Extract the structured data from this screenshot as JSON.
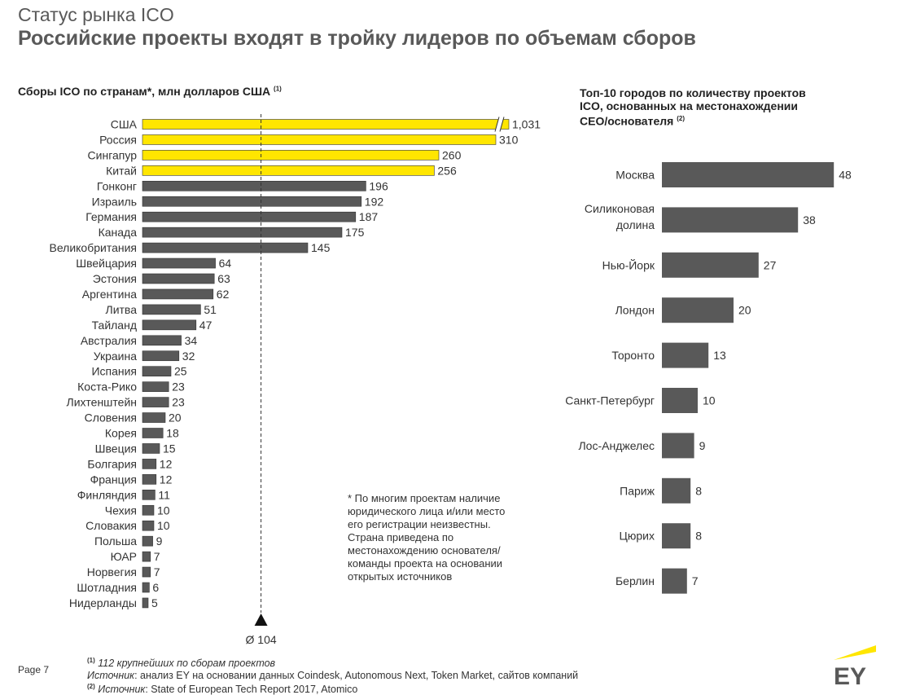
{
  "header": {
    "supertitle": "Статус рынка ICO",
    "title": "Российские проекты входят в тройку лидеров по объемам сборов"
  },
  "left_chart_title": {
    "text": "Сборы ICO по странам*, млн долларов США",
    "sup": "(1)"
  },
  "right_chart_title": {
    "line1": "Топ-10 городов по количеству проектов",
    "line2": "ICO, основанных на местонахождении",
    "line3": "CEO/основателя",
    "sup": "(2)"
  },
  "average_label": "Ø 104",
  "footnote": "* По многим проектам наличие юридического лица и/или место его регистрации неизвестны. Страна приведена по местонахождению основателя/команды проекта на основании открытых источников",
  "footer": {
    "page": "Page 7",
    "source1_sup": "(1)",
    "source1": "112 крупнейших по сборам проектов",
    "source2_label": "Источник",
    "source2": ": анализ EY на основании данных Coindesk, Autonomous Next, Token Market, сайтов компаний",
    "source3_sup": "(2)",
    "source3_label": "Источник",
    "source3": ": State of European Tech Report 2017, Atomico"
  },
  "logo_text": "EY",
  "colors": {
    "highlight": "#ffe600",
    "bar": "#595959",
    "text": "#333333",
    "logo_bar": "#ffe600"
  },
  "chart_data": [
    {
      "type": "bar",
      "orientation": "horizontal",
      "title": "Сборы ICO по странам*, млн долларов США",
      "categories": [
        "США",
        "Россия",
        "Сингапур",
        "Китай",
        "Гонконг",
        "Израиль",
        "Германия",
        "Канада",
        "Великобритания",
        "Швейцария",
        "Эстония",
        "Аргентина",
        "Литва",
        "Тайланд",
        "Австралия",
        "Украина",
        "Испания",
        "Коста-Рико",
        "Лихтенштейн",
        "Словения",
        "Корея",
        "Швеция",
        "Болгария",
        "Франция",
        "Финляндия",
        "Чехия",
        "Словакия",
        "Польша",
        "ЮАР",
        "Норвегия",
        "Шотладния",
        "Нидерланды"
      ],
      "values": [
        1031,
        310,
        260,
        256,
        196,
        192,
        187,
        175,
        145,
        64,
        63,
        62,
        51,
        47,
        34,
        32,
        25,
        23,
        23,
        20,
        18,
        15,
        12,
        12,
        11,
        10,
        10,
        9,
        7,
        7,
        6,
        5
      ],
      "value_labels": [
        "1,031",
        "310",
        "260",
        "256",
        "196",
        "192",
        "187",
        "175",
        "145",
        "64",
        "63",
        "62",
        "51",
        "47",
        "34",
        "32",
        "25",
        "23",
        "23",
        "20",
        "18",
        "15",
        "12",
        "12",
        "11",
        "10",
        "10",
        "9",
        "7",
        "7",
        "6",
        "5"
      ],
      "highlighted": [
        true,
        true,
        true,
        true,
        false,
        false,
        false,
        false,
        false,
        false,
        false,
        false,
        false,
        false,
        false,
        false,
        false,
        false,
        false,
        false,
        false,
        false,
        false,
        false,
        false,
        false,
        false,
        false,
        false,
        false,
        false,
        false
      ],
      "axis_break_on_first": true,
      "average": 104
    },
    {
      "type": "bar",
      "orientation": "horizontal",
      "title": "Топ-10 городов по количеству проектов ICO, основанных на местонахождении CEO/основателя",
      "categories": [
        [
          "Москва"
        ],
        [
          "Силиконовая",
          "долина"
        ],
        [
          "Нью-Йорк"
        ],
        [
          "Лондон"
        ],
        [
          "Торонто"
        ],
        [
          "Санкт-Петербург"
        ],
        [
          "Лос-Анджелес"
        ],
        [
          "Париж"
        ],
        [
          "Цюрих"
        ],
        [
          "Берлин"
        ]
      ],
      "values": [
        48,
        38,
        27,
        20,
        13,
        10,
        9,
        8,
        8,
        7
      ]
    }
  ]
}
